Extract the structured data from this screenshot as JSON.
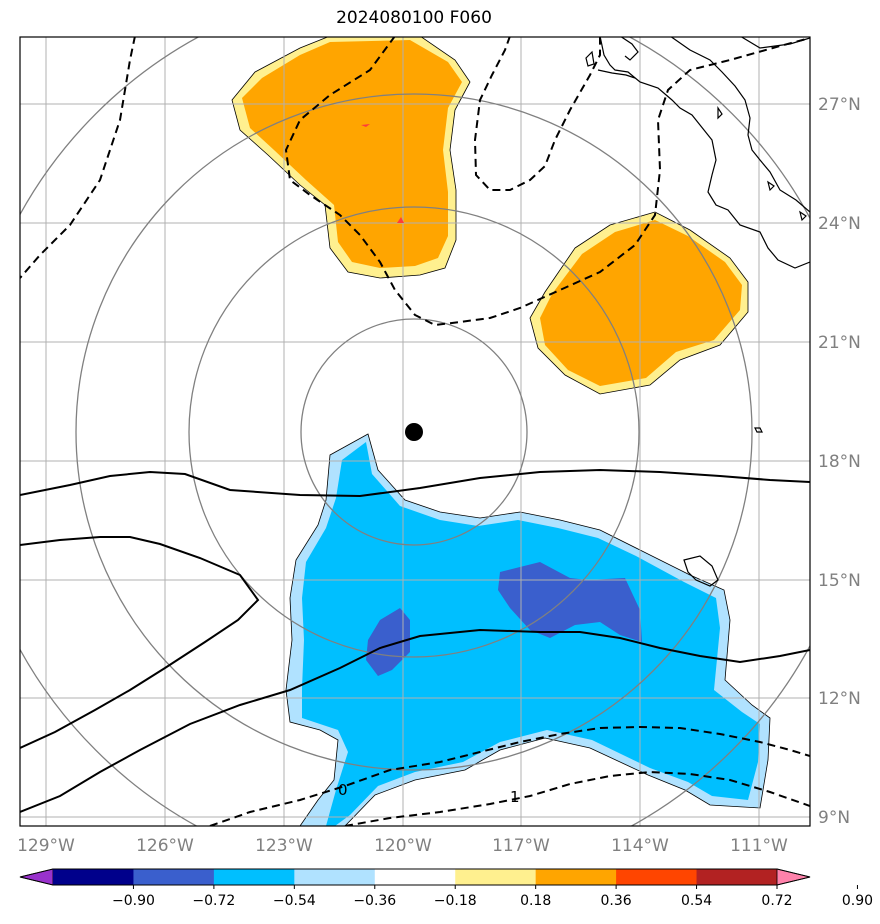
{
  "title": "2024080100 F060",
  "lat_labels": [
    "27°N",
    "24°N",
    "21°N",
    "18°N",
    "15°N",
    "12°N",
    "9°N"
  ],
  "lon_labels": [
    "129°W",
    "126°W",
    "123°W",
    "120°W",
    "117°W",
    "114°W",
    "111°W"
  ],
  "colorbar": {
    "colors": [
      "#9932cc",
      "#00008b",
      "#3a5fcd",
      "#00bfff",
      "#b0e2ff",
      "#ffffff",
      "#fff08f",
      "#ffa500",
      "#ff4500",
      "#b22222",
      "#ff82ab"
    ],
    "labels": [
      "−0.90",
      "−0.72",
      "−0.54",
      "−0.36",
      "−0.18",
      "0.18",
      "0.36",
      "0.54",
      "0.72",
      "0.90"
    ]
  },
  "contour_labels": [
    "0",
    "1"
  ],
  "storm_center": {
    "lat": 18.7,
    "lon": -119.8
  }
}
